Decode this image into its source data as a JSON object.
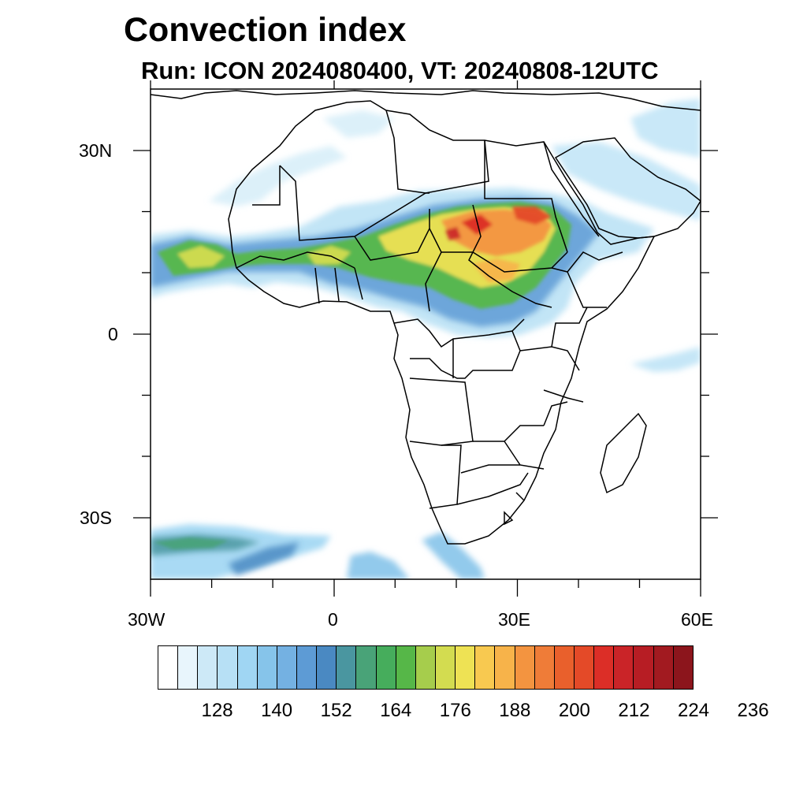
{
  "title": "Convection index",
  "subtitle": "Run: ICON 2024080400,  VT: 20240808-12UTC",
  "axes": {
    "y_labels": [
      "30N",
      "0",
      "30S"
    ],
    "x_labels": [
      "30W",
      "0",
      "30E",
      "60E"
    ]
  },
  "colorbar": {
    "labels": [
      "128",
      "140",
      "152",
      "164",
      "176",
      "188",
      "200",
      "212",
      "224",
      "236"
    ],
    "colors": [
      "#ffffff",
      "#e8f5fc",
      "#cde9f7",
      "#b7e0f5",
      "#a0d6f3",
      "#86c4ea",
      "#74b1e2",
      "#5d9bd5",
      "#4a89c2",
      "#4a96a0",
      "#49a378",
      "#46ad5c",
      "#56b748",
      "#a6cd4c",
      "#d3dc50",
      "#eee254",
      "#f8c950",
      "#f7b34a",
      "#f39440",
      "#ef7c38",
      "#e9602c",
      "#e44a28",
      "#dc2e27",
      "#ca2428",
      "#b71d24",
      "#a21a20",
      "#8c151c"
    ]
  },
  "map": {
    "projection": "cylindrical-equidistant",
    "lon_range": [
      -30,
      60
    ],
    "lat_range": [
      -40,
      40
    ]
  }
}
